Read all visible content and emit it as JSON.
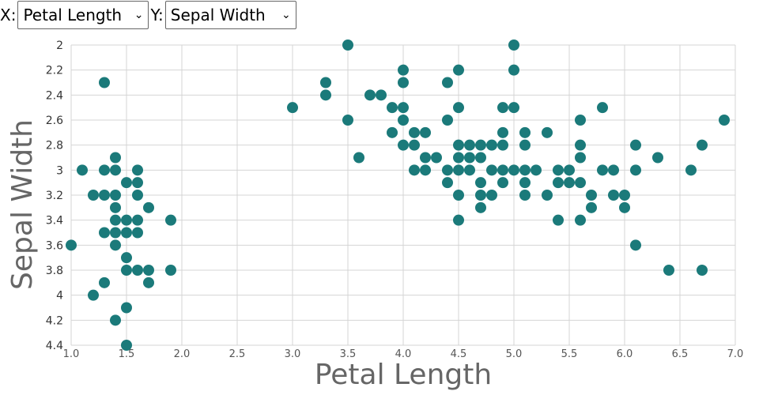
{
  "controls": {
    "x_label": "X:",
    "x_selected": "Petal Length",
    "y_label": "Y:",
    "y_selected": "Sepal Width"
  },
  "colors": {
    "point": "#1b7a7a",
    "grid": "#d4d4d4"
  },
  "icons": {
    "dropdown": "chevron-down-icon"
  },
  "chart_data": {
    "type": "scatter",
    "xlabel": "Petal Length",
    "ylabel": "Sepal Width",
    "xlim": [
      1.0,
      7.0
    ],
    "ylim": [
      2.0,
      4.4
    ],
    "y_inverted": true,
    "xticks": [
      "1.0",
      "1.5",
      "2.0",
      "2.5",
      "3.0",
      "3.5",
      "4.0",
      "4.5",
      "5.0",
      "5.5",
      "6.0",
      "6.5",
      "7.0"
    ],
    "yticks": [
      "2",
      "2.2",
      "2.4",
      "2.6",
      "2.8",
      "3",
      "3.2",
      "3.4",
      "3.6",
      "3.8",
      "4",
      "4.2",
      "4.4"
    ],
    "grid": true,
    "points": [
      [
        1.0,
        3.6
      ],
      [
        1.1,
        3.0
      ],
      [
        1.2,
        3.2
      ],
      [
        1.2,
        4.0
      ],
      [
        1.3,
        2.3
      ],
      [
        1.3,
        3.0
      ],
      [
        1.3,
        3.2
      ],
      [
        1.3,
        3.5
      ],
      [
        1.3,
        3.9
      ],
      [
        1.4,
        2.9
      ],
      [
        1.4,
        3.0
      ],
      [
        1.4,
        3.2
      ],
      [
        1.4,
        3.3
      ],
      [
        1.4,
        3.4
      ],
      [
        1.4,
        3.5
      ],
      [
        1.4,
        3.6
      ],
      [
        1.4,
        4.2
      ],
      [
        1.5,
        3.1
      ],
      [
        1.5,
        3.4
      ],
      [
        1.5,
        3.5
      ],
      [
        1.5,
        3.7
      ],
      [
        1.5,
        3.8
      ],
      [
        1.5,
        4.1
      ],
      [
        1.5,
        4.4
      ],
      [
        1.6,
        3.0
      ],
      [
        1.6,
        3.1
      ],
      [
        1.6,
        3.2
      ],
      [
        1.6,
        3.4
      ],
      [
        1.6,
        3.5
      ],
      [
        1.6,
        3.8
      ],
      [
        1.7,
        3.3
      ],
      [
        1.7,
        3.8
      ],
      [
        1.7,
        3.9
      ],
      [
        1.9,
        3.4
      ],
      [
        1.9,
        3.8
      ],
      [
        3.0,
        2.5
      ],
      [
        3.3,
        2.3
      ],
      [
        3.3,
        2.4
      ],
      [
        3.5,
        2.0
      ],
      [
        3.5,
        2.6
      ],
      [
        3.6,
        2.9
      ],
      [
        3.7,
        2.4
      ],
      [
        3.8,
        2.4
      ],
      [
        3.9,
        2.5
      ],
      [
        3.9,
        2.7
      ],
      [
        4.0,
        2.2
      ],
      [
        4.0,
        2.3
      ],
      [
        4.0,
        2.5
      ],
      [
        4.0,
        2.6
      ],
      [
        4.0,
        2.8
      ],
      [
        4.1,
        2.8
      ],
      [
        4.1,
        3.0
      ],
      [
        4.1,
        2.7
      ],
      [
        4.2,
        2.7
      ],
      [
        4.2,
        2.9
      ],
      [
        4.2,
        3.0
      ],
      [
        4.3,
        2.9
      ],
      [
        4.4,
        2.3
      ],
      [
        4.4,
        2.6
      ],
      [
        4.4,
        3.0
      ],
      [
        4.4,
        3.1
      ],
      [
        4.5,
        2.2
      ],
      [
        4.5,
        2.5
      ],
      [
        4.5,
        2.8
      ],
      [
        4.5,
        2.9
      ],
      [
        4.5,
        3.0
      ],
      [
        4.5,
        3.2
      ],
      [
        4.5,
        3.4
      ],
      [
        4.6,
        2.8
      ],
      [
        4.6,
        2.9
      ],
      [
        4.6,
        3.0
      ],
      [
        4.7,
        2.8
      ],
      [
        4.7,
        2.9
      ],
      [
        4.7,
        3.1
      ],
      [
        4.7,
        3.2
      ],
      [
        4.7,
        3.3
      ],
      [
        4.8,
        2.8
      ],
      [
        4.8,
        3.0
      ],
      [
        4.8,
        3.2
      ],
      [
        4.9,
        2.5
      ],
      [
        4.9,
        2.7
      ],
      [
        4.9,
        2.8
      ],
      [
        4.9,
        3.0
      ],
      [
        4.9,
        3.1
      ],
      [
        5.0,
        2.0
      ],
      [
        5.0,
        2.2
      ],
      [
        5.0,
        2.5
      ],
      [
        5.0,
        3.0
      ],
      [
        5.1,
        2.7
      ],
      [
        5.1,
        2.8
      ],
      [
        5.1,
        3.0
      ],
      [
        5.1,
        3.1
      ],
      [
        5.1,
        3.2
      ],
      [
        5.2,
        3.0
      ],
      [
        5.3,
        2.7
      ],
      [
        5.3,
        3.2
      ],
      [
        5.4,
        3.0
      ],
      [
        5.4,
        3.1
      ],
      [
        5.4,
        3.4
      ],
      [
        5.5,
        3.0
      ],
      [
        5.5,
        3.1
      ],
      [
        5.6,
        2.6
      ],
      [
        5.6,
        2.8
      ],
      [
        5.6,
        2.9
      ],
      [
        5.6,
        3.1
      ],
      [
        5.6,
        3.4
      ],
      [
        5.7,
        3.2
      ],
      [
        5.7,
        3.3
      ],
      [
        5.8,
        2.5
      ],
      [
        5.8,
        3.0
      ],
      [
        5.9,
        3.0
      ],
      [
        5.9,
        3.2
      ],
      [
        6.0,
        3.2
      ],
      [
        6.0,
        3.3
      ],
      [
        6.1,
        2.8
      ],
      [
        6.1,
        3.0
      ],
      [
        6.1,
        3.6
      ],
      [
        6.3,
        2.9
      ],
      [
        6.4,
        3.8
      ],
      [
        6.6,
        3.0
      ],
      [
        6.7,
        2.8
      ],
      [
        6.7,
        3.8
      ],
      [
        6.9,
        2.6
      ]
    ]
  }
}
